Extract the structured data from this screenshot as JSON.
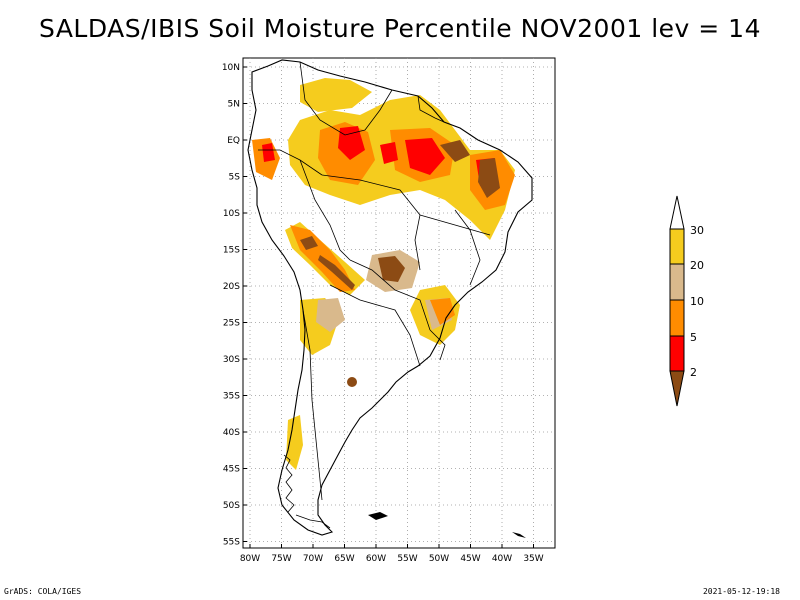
{
  "title": "SALDAS/IBIS Soil Moisture Percentile NOV2001 lev = 14",
  "map": {
    "region": "South America",
    "lat_ticks": [
      "10N",
      "5N",
      "EQ",
      "5S",
      "10S",
      "15S",
      "20S",
      "25S",
      "30S",
      "35S",
      "40S",
      "45S",
      "50S",
      "55S"
    ],
    "lon_ticks": [
      "80W",
      "75W",
      "70W",
      "65W",
      "60W",
      "55W",
      "50W",
      "45W",
      "40W",
      "35W"
    ]
  },
  "colorbar": {
    "labels": [
      "30",
      "20",
      "10",
      "5",
      "2"
    ],
    "colors": {
      "top_over": "#ffffff",
      "p20_30": "#f5cc1e",
      "p10_20": "#d9b98c",
      "p5_10": "#ff8c00",
      "p2_5": "#ff0000",
      "below_2": "#8c4b14"
    }
  },
  "footer": {
    "left": "GrADS: COLA/IGES",
    "right": "2021-05-12-19:18"
  }
}
